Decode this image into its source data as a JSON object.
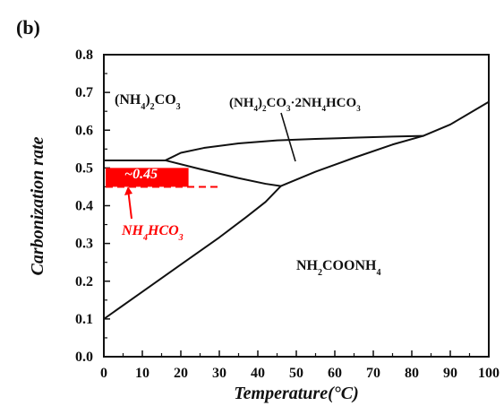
{
  "panel_label": "(b)",
  "chart_data": {
    "type": "line",
    "title": "",
    "xlabel": "Temperature(°C)",
    "ylabel": "Carbonization rate",
    "xlim": [
      0,
      100
    ],
    "ylim": [
      0.0,
      0.8
    ],
    "x_ticks": [
      "0",
      "10",
      "20",
      "30",
      "40",
      "50",
      "60",
      "70",
      "80",
      "90",
      "100"
    ],
    "y_ticks": [
      "0.0",
      "0.1",
      "0.2",
      "0.3",
      "0.4",
      "0.5",
      "0.6",
      "0.7",
      "0.8"
    ],
    "grid": false,
    "legend": "none",
    "series": [
      {
        "values": [
          {
            "x": 0,
            "y": 0.52
          },
          {
            "x": 16,
            "y": 0.52
          }
        ]
      },
      {
        "values": [
          {
            "x": 16,
            "y": 0.52
          },
          {
            "x": 20,
            "y": 0.54
          },
          {
            "x": 26,
            "y": 0.553
          },
          {
            "x": 35,
            "y": 0.565
          },
          {
            "x": 45,
            "y": 0.573
          },
          {
            "x": 55,
            "y": 0.577
          },
          {
            "x": 65,
            "y": 0.58
          },
          {
            "x": 75,
            "y": 0.583
          },
          {
            "x": 83,
            "y": 0.585
          }
        ]
      },
      {
        "values": [
          {
            "x": 16,
            "y": 0.52
          },
          {
            "x": 25,
            "y": 0.497
          },
          {
            "x": 35,
            "y": 0.473
          },
          {
            "x": 42,
            "y": 0.458
          },
          {
            "x": 46,
            "y": 0.452
          }
        ]
      },
      {
        "values": [
          {
            "x": 0,
            "y": 0.1
          },
          {
            "x": 10,
            "y": 0.172
          },
          {
            "x": 20,
            "y": 0.244
          },
          {
            "x": 30,
            "y": 0.316
          },
          {
            "x": 37,
            "y": 0.37
          },
          {
            "x": 42,
            "y": 0.41
          },
          {
            "x": 46,
            "y": 0.452
          }
        ]
      },
      {
        "values": [
          {
            "x": 46,
            "y": 0.452
          },
          {
            "x": 55,
            "y": 0.49
          },
          {
            "x": 65,
            "y": 0.527
          },
          {
            "x": 75,
            "y": 0.562
          },
          {
            "x": 83,
            "y": 0.585
          },
          {
            "x": 90,
            "y": 0.615
          },
          {
            "x": 100,
            "y": 0.675
          }
        ]
      }
    ],
    "annotations": {
      "region_nh4_2co3": "(NH4)2CO3",
      "region_double_salt": "(NH4)2CO3·2NH4HCO3",
      "region_carbamate": "NH2COONH4",
      "highlight_label": "~0.45",
      "nh4hco3_label": "NH4HCO3",
      "highlight_range_x": [
        0,
        22
      ],
      "highlight_range_y": [
        0.45,
        0.5
      ],
      "dashed_level": 0.45,
      "dashed_range_x": [
        0,
        30
      ]
    },
    "colors": {
      "highlight": "#ff0000",
      "line": "#111111",
      "annotation": "#ff0000"
    }
  }
}
